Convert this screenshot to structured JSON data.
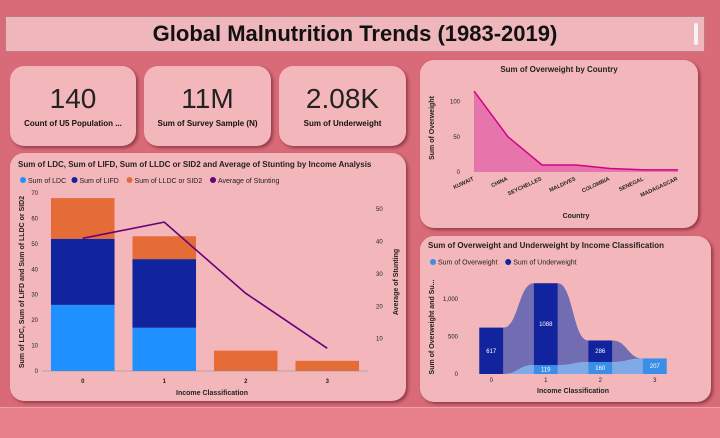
{
  "header": {
    "title": "Global Malnutrition Trends (1983-2019)"
  },
  "kpis": [
    {
      "value": "140",
      "label": "Count of U5 Population ..."
    },
    {
      "value": "11M",
      "label": "Sum of Survey Sample (N)"
    },
    {
      "value": "2.08K",
      "label": "Sum of Underweight"
    }
  ],
  "colors": {
    "ldc": "#1e90ff",
    "lifd": "#12239e",
    "lldc": "#e66c37",
    "stunting": "#6b007b",
    "overweight_area": "#e05fa6",
    "ow_light": "#3a8ee8",
    "uw_dark": "#12239e"
  },
  "chart_data": [
    {
      "type": "area",
      "title": "Sum of Overweight by Country",
      "xlabel": "Country",
      "ylabel": "Sum of Overweight",
      "categories": [
        "KUWAIT",
        "CHINA",
        "SEYCHELLES",
        "MALDIVES",
        "COLOMBIA",
        "SENEGAL",
        "MADAGASCAR"
      ],
      "values": [
        115,
        50,
        10,
        10,
        5,
        3,
        3
      ],
      "yticks": [
        "0",
        "50",
        "100"
      ],
      "ylim": [
        0,
        125
      ]
    },
    {
      "type": "bar",
      "title": "Sum of LDC, Sum of LIFD, Sum of LLDC or SID2 and Average of Stunting by Income Analysis",
      "xlabel": "Income Classification",
      "ylabel": "Sum of LDC, Sum of LIFD and Sum of LLDC or SID2",
      "y2label": "Average of Stunting",
      "categories": [
        "0",
        "1",
        "2",
        "3"
      ],
      "series": [
        {
          "name": "Sum of LDC",
          "values": [
            26,
            17,
            0,
            0
          ]
        },
        {
          "name": "Sum of LIFD",
          "values": [
            26,
            27,
            0,
            0
          ]
        },
        {
          "name": "Sum of LLDC or SID2",
          "values": [
            16,
            9,
            8,
            4
          ]
        },
        {
          "name": "Average of Stunting",
          "values": [
            41,
            46,
            24,
            7
          ]
        }
      ],
      "yticks": [
        "0",
        "10",
        "20",
        "30",
        "40",
        "50",
        "60",
        "70"
      ],
      "y2ticks": [
        "10",
        "20",
        "30",
        "40",
        "50"
      ],
      "ylim": [
        0,
        70
      ],
      "y2lim": [
        0,
        55
      ]
    },
    {
      "type": "bar",
      "title": "Sum of Overweight and Underweight by Income Classification",
      "xlabel": "Income Classification",
      "ylabel": "Sum of Overweight and Su...",
      "categories": [
        "0",
        "1",
        "2",
        "3"
      ],
      "series": [
        {
          "name": "Sum of Overweight",
          "values": [
            0,
            119,
            160,
            207
          ]
        },
        {
          "name": "Sum of Underweight",
          "values": [
            617,
            1088,
            286,
            0
          ]
        }
      ],
      "data_labels": [
        "617",
        "1088",
        "119",
        "286",
        "160",
        "207"
      ],
      "yticks": [
        "0",
        "500",
        "1,000"
      ],
      "ylim": [
        0,
        1250
      ]
    }
  ]
}
